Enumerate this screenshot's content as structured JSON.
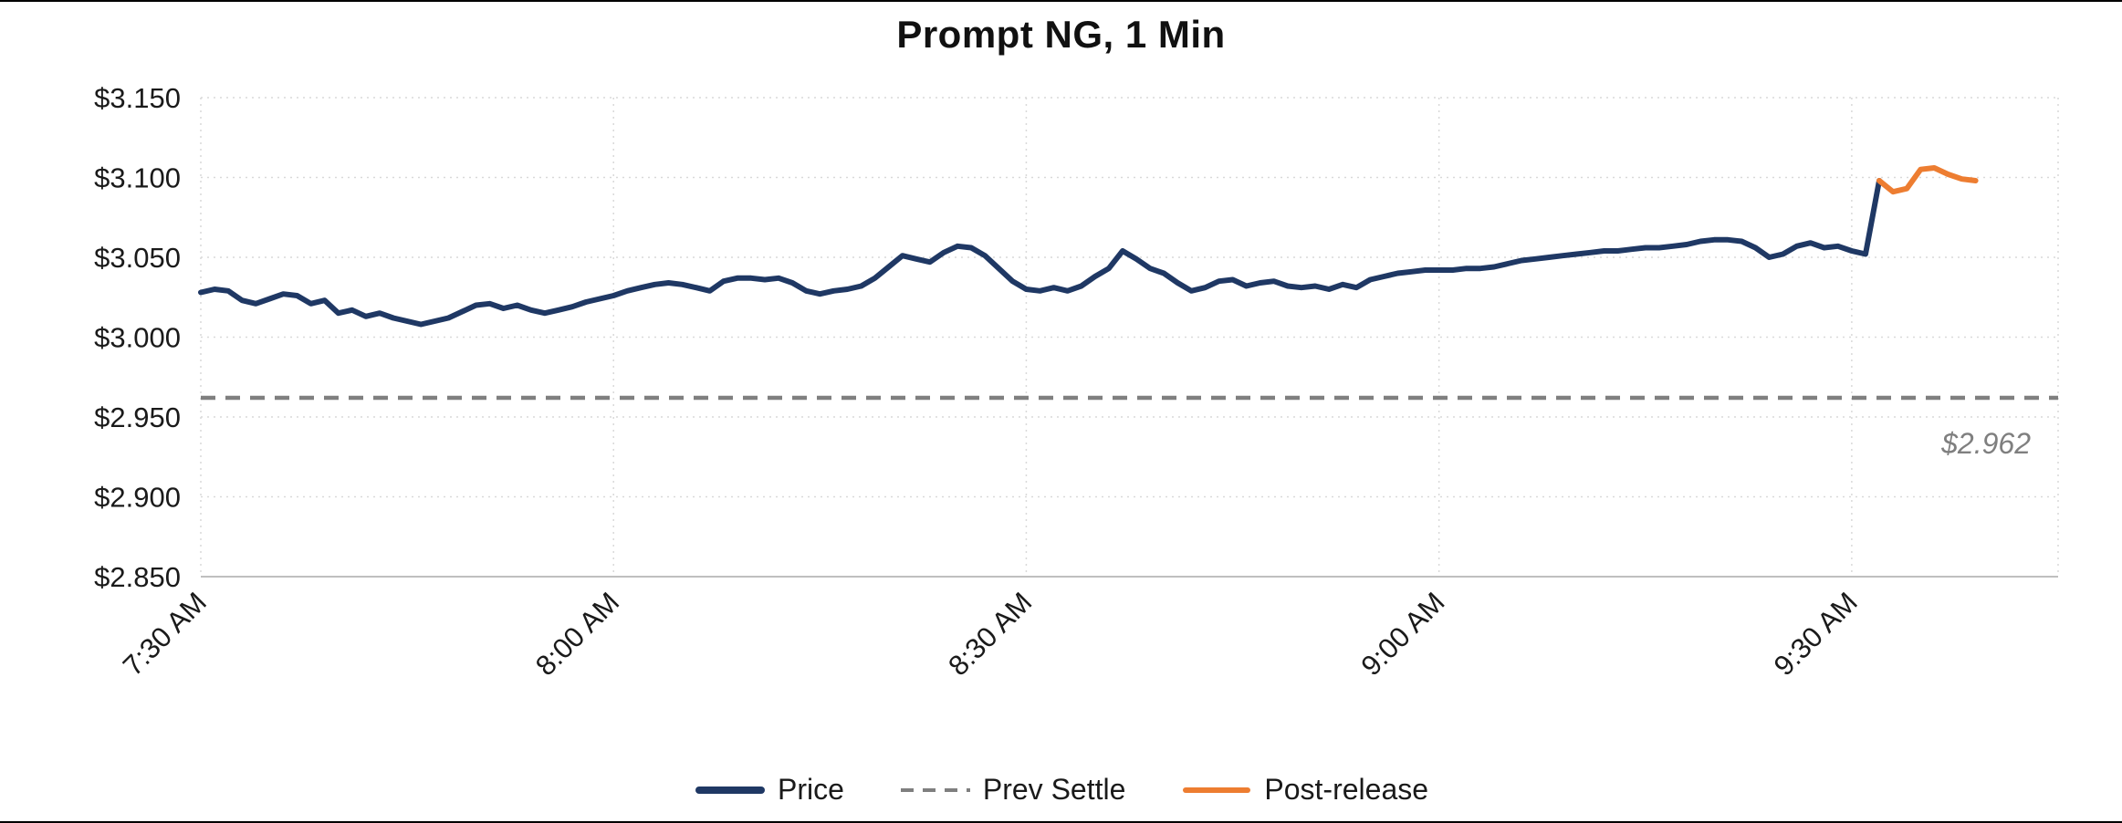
{
  "chart": {
    "title": "Prompt NG, 1 Min",
    "annotation": "$2.962",
    "legend": [
      {
        "label": "Price",
        "color": "#1f3864",
        "thickness": 8,
        "dash": ""
      },
      {
        "label": "Prev Settle",
        "color": "#7f7f7f",
        "thickness": 4,
        "dash": "14 10"
      },
      {
        "label": "Post-release",
        "color": "#ed7d31",
        "thickness": 6,
        "dash": ""
      }
    ]
  },
  "chart_data": {
    "type": "line",
    "title": "Prompt NG, 1 Min",
    "x_unit": "minutes since 7:30 AM",
    "xlim": [
      0,
      135
    ],
    "ylim": [
      2.85,
      3.15
    ],
    "y_ticks": [
      2.85,
      2.9,
      2.95,
      3.0,
      3.05,
      3.1,
      3.15
    ],
    "y_tick_labels": [
      "$2.850",
      "$2.900",
      "$2.950",
      "$3.000",
      "$3.050",
      "$3.100",
      "$3.150"
    ],
    "x_ticks": [
      0,
      30,
      60,
      90,
      120
    ],
    "x_tick_labels": [
      "7:30 AM",
      "8:00 AM",
      "8:30 AM",
      "9:00 AM",
      "9:30 AM"
    ],
    "grid": true,
    "legend_position": "bottom",
    "prev_settle": {
      "value": 2.962,
      "label": "$2.962",
      "color": "#7f7f7f"
    },
    "style": {
      "grid_color": "#d9d9d9",
      "axis_color": "#bfbfbf",
      "text_color": "#1a1a1a"
    },
    "series": [
      {
        "name": "Price",
        "color": "#1f3864",
        "width": 6,
        "x0": 0,
        "dx": 1,
        "y": [
          3.028,
          3.03,
          3.029,
          3.023,
          3.021,
          3.024,
          3.027,
          3.026,
          3.021,
          3.023,
          3.015,
          3.017,
          3.013,
          3.015,
          3.012,
          3.01,
          3.008,
          3.01,
          3.012,
          3.016,
          3.02,
          3.021,
          3.018,
          3.02,
          3.017,
          3.015,
          3.017,
          3.019,
          3.022,
          3.024,
          3.026,
          3.029,
          3.031,
          3.033,
          3.034,
          3.033,
          3.031,
          3.029,
          3.035,
          3.037,
          3.037,
          3.036,
          3.037,
          3.034,
          3.029,
          3.027,
          3.029,
          3.03,
          3.032,
          3.037,
          3.044,
          3.051,
          3.049,
          3.047,
          3.053,
          3.057,
          3.056,
          3.051,
          3.043,
          3.035,
          3.03,
          3.029,
          3.031,
          3.029,
          3.032,
          3.038,
          3.043,
          3.054,
          3.049,
          3.043,
          3.04,
          3.034,
          3.029,
          3.031,
          3.035,
          3.036,
          3.032,
          3.034,
          3.035,
          3.032,
          3.031,
          3.032,
          3.03,
          3.033,
          3.031,
          3.036,
          3.038,
          3.04,
          3.041,
          3.042,
          3.042,
          3.042,
          3.043,
          3.043,
          3.044,
          3.046,
          3.048,
          3.049,
          3.05,
          3.051,
          3.052,
          3.053,
          3.054,
          3.054,
          3.055,
          3.056,
          3.056,
          3.057,
          3.058,
          3.06,
          3.061,
          3.061,
          3.06,
          3.056,
          3.05,
          3.052,
          3.057,
          3.059,
          3.056,
          3.057,
          3.054,
          3.052,
          3.098
        ]
      },
      {
        "name": "Post-release",
        "color": "#ed7d31",
        "width": 6,
        "x0": 122,
        "dx": 1,
        "y": [
          3.098,
          3.091,
          3.093,
          3.105,
          3.106,
          3.102,
          3.099,
          3.098
        ]
      }
    ]
  }
}
